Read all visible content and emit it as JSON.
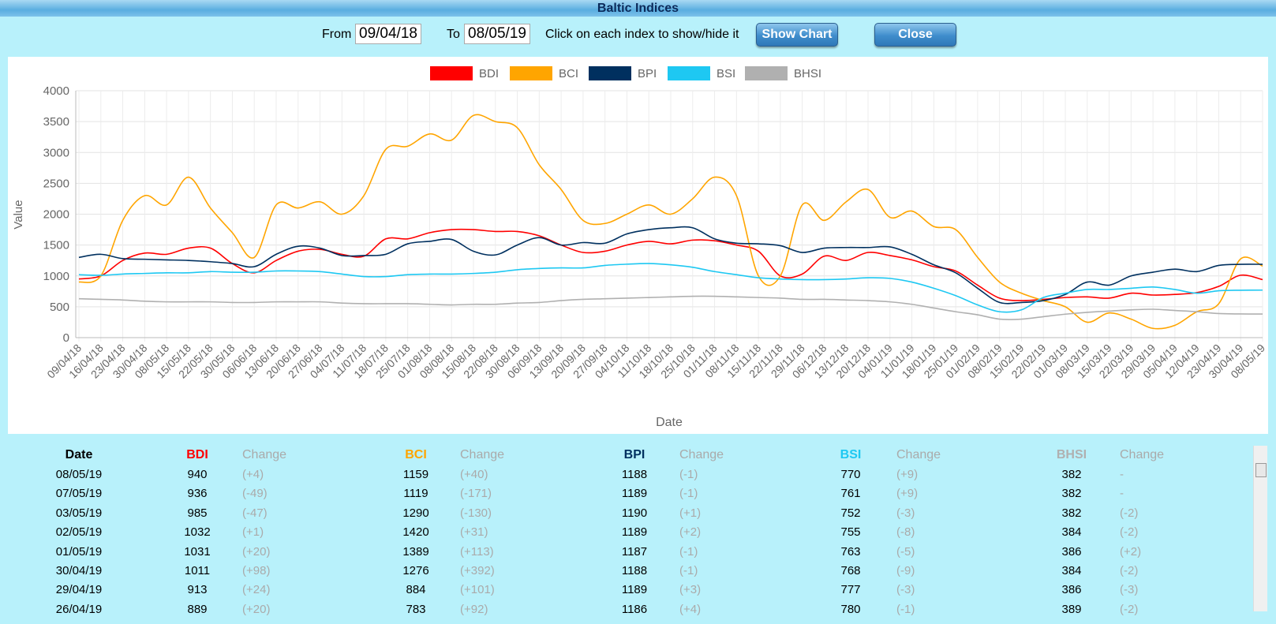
{
  "header": {
    "title": "Baltic Indices"
  },
  "controls": {
    "from_label": "From",
    "from_value": "09/04/18",
    "to_label": "To",
    "to_value": "08/05/19",
    "hint": "Click on each index to show/hide it",
    "show_button": "Show Chart",
    "close_button": "Close"
  },
  "chart_data": {
    "type": "line",
    "x_label": "Date",
    "y_label": "Value",
    "categories": [
      "09/04/18",
      "16/04/18",
      "23/04/18",
      "30/04/18",
      "08/05/18",
      "15/05/18",
      "22/05/18",
      "30/05/18",
      "06/06/18",
      "13/06/18",
      "20/06/18",
      "27/06/18",
      "04/07/18",
      "11/07/18",
      "18/07/18",
      "25/07/18",
      "01/08/18",
      "08/08/18",
      "15/08/18",
      "22/08/18",
      "30/08/18",
      "06/09/18",
      "13/09/18",
      "20/09/18",
      "27/09/18",
      "04/10/18",
      "11/10/18",
      "18/10/18",
      "25/10/18",
      "01/11/18",
      "08/11/18",
      "15/11/18",
      "22/11/18",
      "29/11/18",
      "06/12/18",
      "13/12/18",
      "20/12/18",
      "04/01/19",
      "11/01/19",
      "18/01/19",
      "25/01/19",
      "01/02/19",
      "08/02/19",
      "15/02/19",
      "22/02/19",
      "01/03/19",
      "08/03/19",
      "15/03/19",
      "22/03/19",
      "29/03/19",
      "05/04/19",
      "12/04/19",
      "23/04/19",
      "30/04/19",
      "08/05/19"
    ],
    "series": [
      {
        "name": "BDI",
        "color": "#ff0000",
        "values": [
          950,
          1000,
          1250,
          1370,
          1350,
          1450,
          1450,
          1200,
          1050,
          1250,
          1400,
          1430,
          1350,
          1320,
          1600,
          1600,
          1700,
          1750,
          1750,
          1720,
          1720,
          1650,
          1500,
          1380,
          1400,
          1500,
          1560,
          1520,
          1580,
          1570,
          1500,
          1400,
          1000,
          1030,
          1320,
          1250,
          1380,
          1330,
          1260,
          1150,
          1080,
          850,
          640,
          600,
          620,
          650,
          660,
          640,
          720,
          690,
          700,
          730,
          830,
          1011,
          940
        ]
      },
      {
        "name": "BCI",
        "color": "#ffa500",
        "values": [
          900,
          1000,
          1900,
          2300,
          2150,
          2600,
          2100,
          1700,
          1300,
          2150,
          2100,
          2200,
          2000,
          2300,
          3050,
          3100,
          3300,
          3200,
          3600,
          3500,
          3400,
          2800,
          2400,
          1900,
          1850,
          2000,
          2150,
          2000,
          2250,
          2600,
          2300,
          1000,
          1000,
          2150,
          1900,
          2200,
          2400,
          1950,
          2050,
          1800,
          1750,
          1300,
          900,
          720,
          600,
          500,
          250,
          400,
          300,
          150,
          200,
          420,
          550,
          1276,
          1159
        ]
      },
      {
        "name": "BPI",
        "color": "#00305f",
        "values": [
          1300,
          1350,
          1280,
          1270,
          1260,
          1250,
          1230,
          1200,
          1150,
          1350,
          1480,
          1450,
          1330,
          1330,
          1350,
          1520,
          1560,
          1590,
          1400,
          1340,
          1500,
          1620,
          1500,
          1540,
          1530,
          1680,
          1750,
          1780,
          1780,
          1600,
          1530,
          1520,
          1490,
          1380,
          1450,
          1460,
          1460,
          1470,
          1350,
          1180,
          1050,
          800,
          570,
          570,
          600,
          700,
          900,
          850,
          1000,
          1060,
          1110,
          1070,
          1170,
          1188,
          1188
        ]
      },
      {
        "name": "BSI",
        "color": "#1ec8f2",
        "values": [
          1020,
          1010,
          1030,
          1040,
          1050,
          1050,
          1070,
          1060,
          1060,
          1080,
          1080,
          1070,
          1030,
          990,
          990,
          1020,
          1030,
          1030,
          1040,
          1060,
          1100,
          1120,
          1130,
          1130,
          1170,
          1190,
          1200,
          1180,
          1140,
          1070,
          1020,
          970,
          950,
          940,
          940,
          950,
          970,
          960,
          900,
          800,
          680,
          530,
          420,
          450,
          650,
          720,
          780,
          780,
          800,
          820,
          780,
          720,
          760,
          768,
          770
        ]
      },
      {
        "name": "BHSI",
        "color": "#b0b0b0",
        "values": [
          630,
          620,
          610,
          590,
          580,
          580,
          580,
          570,
          570,
          580,
          580,
          580,
          560,
          550,
          550,
          550,
          540,
          530,
          540,
          540,
          560,
          570,
          600,
          620,
          630,
          640,
          650,
          660,
          670,
          670,
          660,
          650,
          640,
          620,
          620,
          610,
          600,
          580,
          540,
          480,
          420,
          370,
          300,
          300,
          340,
          380,
          410,
          430,
          450,
          460,
          440,
          420,
          390,
          384,
          382
        ]
      }
    ],
    "ylim": [
      0,
      4000
    ],
    "yticks": [
      0,
      500,
      1000,
      1500,
      2000,
      2500,
      3000,
      3500,
      4000
    ],
    "grid": true,
    "legend": "top"
  },
  "table": {
    "headers": [
      "Date",
      "BDI",
      "Change",
      "BCI",
      "Change",
      "BPI",
      "Change",
      "BSI",
      "Change",
      "BHSI",
      "Change"
    ],
    "rows": [
      [
        "08/05/19",
        "940",
        "(+4)",
        "1159",
        "(+40)",
        "1188",
        "(-1)",
        "770",
        "(+9)",
        "382",
        "-"
      ],
      [
        "07/05/19",
        "936",
        "(-49)",
        "1119",
        "(-171)",
        "1189",
        "(-1)",
        "761",
        "(+9)",
        "382",
        "-"
      ],
      [
        "03/05/19",
        "985",
        "(-47)",
        "1290",
        "(-130)",
        "1190",
        "(+1)",
        "752",
        "(-3)",
        "382",
        "(-2)"
      ],
      [
        "02/05/19",
        "1032",
        "(+1)",
        "1420",
        "(+31)",
        "1189",
        "(+2)",
        "755",
        "(-8)",
        "384",
        "(-2)"
      ],
      [
        "01/05/19",
        "1031",
        "(+20)",
        "1389",
        "(+113)",
        "1187",
        "(-1)",
        "763",
        "(-5)",
        "386",
        "(+2)"
      ],
      [
        "30/04/19",
        "1011",
        "(+98)",
        "1276",
        "(+392)",
        "1188",
        "(-1)",
        "768",
        "(-9)",
        "384",
        "(-2)"
      ],
      [
        "29/04/19",
        "913",
        "(+24)",
        "884",
        "(+101)",
        "1189",
        "(+3)",
        "777",
        "(-3)",
        "386",
        "(-3)"
      ],
      [
        "26/04/19",
        "889",
        "(+20)",
        "783",
        "(+92)",
        "1186",
        "(+4)",
        "780",
        "(-1)",
        "389",
        "(-2)"
      ]
    ]
  }
}
